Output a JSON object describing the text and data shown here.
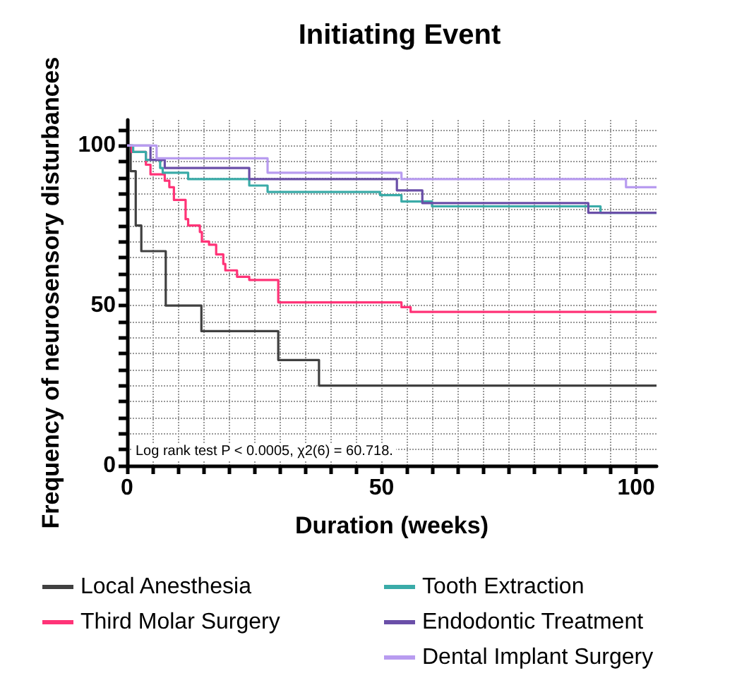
{
  "chart_data": {
    "type": "step",
    "title": "Initiating Event",
    "xlabel": "Duration (weeks)",
    "ylabel": "Frequency of neurosensory disturbances",
    "annotations": [
      "Log rank test P < 0.0005, χ2(6) = 60.718."
    ],
    "xlim": [
      0,
      104
    ],
    "ylim": [
      0,
      108
    ],
    "xticks": [
      0,
      {
        "value": 5,
        "label": null
      },
      {
        "value": 10,
        "label": null
      },
      {
        "value": 15,
        "label": null
      },
      {
        "value": 20,
        "label": null
      },
      {
        "value": 25,
        "label": null
      },
      {
        "value": 30,
        "label": null
      },
      {
        "value": 35,
        "label": null
      },
      {
        "value": 40,
        "label": null
      },
      {
        "value": 45,
        "label": null
      },
      50,
      {
        "value": 55,
        "label": null
      },
      {
        "value": 60,
        "label": null
      },
      {
        "value": 65,
        "label": null
      },
      {
        "value": 70,
        "label": null
      },
      {
        "value": 75,
        "label": null
      },
      {
        "value": 80,
        "label": null
      },
      {
        "value": 85,
        "label": null
      },
      {
        "value": 90,
        "label": null
      },
      {
        "value": 95,
        "label": null
      },
      100
    ],
    "yticks": [
      0,
      {
        "value": 5,
        "label": null
      },
      {
        "value": 10,
        "label": null
      },
      {
        "value": 15,
        "label": null
      },
      {
        "value": 20,
        "label": null
      },
      {
        "value": 25,
        "label": null
      },
      {
        "value": 30,
        "label": null
      },
      {
        "value": 35,
        "label": null
      },
      {
        "value": 40,
        "label": null
      },
      {
        "value": 45,
        "label": null
      },
      50,
      {
        "value": 55,
        "label": null
      },
      {
        "value": 60,
        "label": null
      },
      {
        "value": 65,
        "label": null
      },
      {
        "value": 70,
        "label": null
      },
      {
        "value": 75,
        "label": null
      },
      {
        "value": 80,
        "label": null
      },
      {
        "value": 85,
        "label": null
      },
      {
        "value": 90,
        "label": null
      },
      {
        "value": 95,
        "label": null
      },
      100,
      {
        "value": 105,
        "label": null
      }
    ],
    "grid": true,
    "legend": "bottom",
    "marker": "none",
    "line_style": "solid",
    "series": [
      {
        "name": "Local Anesthesia",
        "color": "#404040",
        "x": [
          0,
          0.7,
          1.7,
          2.8,
          7.6,
          14.6,
          29.7,
          37.7,
          104
        ],
        "values": [
          100,
          92,
          75,
          67,
          50,
          42,
          33,
          25,
          25
        ]
      },
      {
        "name": "Third Molar Surgery",
        "color": "#ff3377",
        "x": [
          0,
          0.9,
          3.7,
          4.6,
          7.4,
          8.3,
          9.2,
          11.5,
          12,
          14.3,
          14.7,
          16.1,
          17.5,
          18.9,
          19.3,
          21.6,
          24,
          29.7,
          53.9,
          55.7,
          104
        ],
        "values": [
          100,
          98,
          94,
          91,
          89,
          87,
          83,
          77,
          75,
          73,
          70,
          69,
          66,
          63,
          61,
          59,
          58,
          51,
          49.5,
          48,
          48
        ]
      },
      {
        "name": "Tooth Extraction",
        "color": "#3aaba8",
        "x": [
          0,
          1.2,
          3.7,
          6.5,
          7,
          12,
          24,
          27.6,
          49.7,
          53.9,
          59.9,
          93,
          104
        ],
        "values": [
          100,
          98,
          95.5,
          93,
          91.5,
          89.5,
          87.5,
          85.5,
          84.5,
          82.5,
          81,
          79,
          79
        ]
      },
      {
        "name": "Endodontic Treatment",
        "color": "#6a4fa8",
        "x": [
          0,
          4.6,
          7.4,
          24,
          53,
          58,
          90.6,
          104
        ],
        "values": [
          100,
          95.5,
          93,
          89.5,
          86,
          82,
          79,
          79
        ]
      },
      {
        "name": "Dental Implant Surgery",
        "color": "#b89cf0",
        "x": [
          0,
          5.8,
          27.6,
          53.9,
          98,
          104
        ],
        "values": [
          100,
          96,
          91.5,
          89.5,
          87,
          87
        ]
      }
    ]
  }
}
